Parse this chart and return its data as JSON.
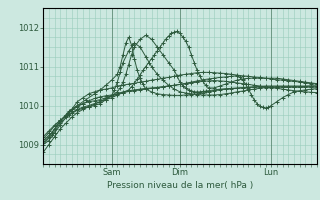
{
  "xlabel": "Pression niveau de la mer( hPa )",
  "bg_color": "#cce8e0",
  "grid_color": "#99ccbb",
  "line_color": "#2d5a3d",
  "ylim": [
    1008.5,
    1012.5
  ],
  "yticks": [
    1009,
    1010,
    1011,
    1012
  ],
  "xlim": [
    0,
    96
  ],
  "day_positions": [
    24,
    48,
    80
  ],
  "day_labels": [
    "Sam",
    "Dim",
    "Lun"
  ],
  "n_points": 97,
  "series": [
    {
      "x": [
        0,
        2,
        4,
        6,
        8,
        10,
        12,
        14,
        16,
        18,
        20,
        22,
        24,
        26,
        28,
        30,
        32,
        34,
        36,
        38,
        40,
        42,
        44,
        46,
        48,
        50,
        52,
        54,
        56,
        58,
        60,
        62,
        64,
        66,
        68,
        70,
        72,
        74,
        76,
        78,
        80,
        82,
        84,
        86,
        88,
        90,
        92,
        94,
        96
      ],
      "y": [
        1009.0,
        1009.1,
        1009.3,
        1009.5,
        1009.7,
        1009.9,
        1010.1,
        1010.2,
        1010.3,
        1010.35,
        1010.4,
        1010.42,
        1010.45,
        1010.5,
        1010.52,
        1010.55,
        1010.57,
        1010.6,
        1010.62,
        1010.65,
        1010.67,
        1010.7,
        1010.72,
        1010.75,
        1010.78,
        1010.8,
        1010.82,
        1010.84,
        1010.85,
        1010.85,
        1010.84,
        1010.83,
        1010.82,
        1010.8,
        1010.78,
        1010.76,
        1010.75,
        1010.73,
        1010.72,
        1010.7,
        1010.68,
        1010.66,
        1010.65,
        1010.63,
        1010.62,
        1010.6,
        1010.58,
        1010.56,
        1010.55
      ]
    },
    {
      "x": [
        0,
        2,
        4,
        6,
        8,
        10,
        12,
        14,
        16,
        18,
        20,
        22,
        24,
        26,
        28,
        30,
        32,
        34,
        36,
        38,
        40,
        42,
        44,
        46,
        48,
        50,
        52,
        54,
        56,
        58,
        60,
        62,
        64,
        66,
        68,
        70,
        72,
        74,
        76,
        78,
        80,
        82,
        84,
        86,
        88,
        90,
        92,
        94,
        96
      ],
      "y": [
        1009.05,
        1009.2,
        1009.4,
        1009.6,
        1009.75,
        1009.9,
        1010.0,
        1010.05,
        1010.1,
        1010.12,
        1010.15,
        1010.2,
        1010.25,
        1010.3,
        1010.35,
        1010.38,
        1010.4,
        1010.42,
        1010.44,
        1010.45,
        1010.46,
        1010.48,
        1010.5,
        1010.52,
        1010.54,
        1010.56,
        1010.58,
        1010.6,
        1010.62,
        1010.63,
        1010.64,
        1010.63,
        1010.62,
        1010.6,
        1010.58,
        1010.56,
        1010.54,
        1010.52,
        1010.5,
        1010.48,
        1010.46,
        1010.44,
        1010.42,
        1010.4,
        1010.38,
        1010.36,
        1010.35,
        1010.34,
        1010.33
      ]
    },
    {
      "x": [
        0,
        3,
        6,
        9,
        12,
        15,
        18,
        20,
        22,
        24,
        26,
        27,
        28,
        29,
        30,
        31,
        32,
        33,
        34,
        35,
        36,
        38,
        40,
        42,
        44,
        46,
        48,
        50,
        52,
        54,
        56,
        58,
        60,
        62,
        64,
        66,
        68,
        70,
        72,
        74,
        76,
        78,
        80,
        82,
        84,
        86,
        88,
        90,
        92,
        94,
        96
      ],
      "y": [
        1009.1,
        1009.3,
        1009.6,
        1009.85,
        1010.0,
        1010.15,
        1010.3,
        1010.4,
        1010.52,
        1010.65,
        1010.8,
        1011.0,
        1011.3,
        1011.6,
        1011.75,
        1011.55,
        1011.2,
        1010.9,
        1010.7,
        1010.55,
        1010.42,
        1010.35,
        1010.3,
        1010.28,
        1010.27,
        1010.26,
        1010.26,
        1010.27,
        1010.28,
        1010.3,
        1010.32,
        1010.35,
        1010.38,
        1010.4,
        1010.42,
        1010.43,
        1010.44,
        1010.45,
        1010.46,
        1010.47,
        1010.47,
        1010.47,
        1010.47,
        1010.47,
        1010.47,
        1010.47,
        1010.47,
        1010.47,
        1010.47,
        1010.47,
        1010.47
      ]
    },
    {
      "x": [
        0,
        3,
        6,
        9,
        12,
        14,
        16,
        18,
        20,
        22,
        24,
        25,
        26,
        27,
        28,
        30,
        32,
        34,
        36,
        38,
        40,
        42,
        44,
        46,
        48,
        50,
        52,
        54,
        56,
        58,
        60,
        62,
        64,
        66,
        68,
        70,
        72,
        74,
        76,
        78,
        80,
        82,
        84,
        86,
        88,
        90,
        92,
        94,
        96
      ],
      "y": [
        1009.0,
        1009.25,
        1009.55,
        1009.75,
        1009.88,
        1009.93,
        1009.97,
        1010.0,
        1010.05,
        1010.15,
        1010.25,
        1010.4,
        1010.6,
        1010.85,
        1011.1,
        1011.4,
        1011.6,
        1011.5,
        1011.25,
        1011.0,
        1010.8,
        1010.65,
        1010.52,
        1010.42,
        1010.35,
        1010.32,
        1010.3,
        1010.28,
        1010.27,
        1010.27,
        1010.27,
        1010.28,
        1010.3,
        1010.32,
        1010.35,
        1010.37,
        1010.4,
        1010.42,
        1010.44,
        1010.46,
        1010.47,
        1010.48,
        1010.48,
        1010.48,
        1010.48,
        1010.48,
        1010.49,
        1010.5,
        1010.5
      ]
    },
    {
      "x": [
        0,
        2,
        4,
        6,
        8,
        10,
        12,
        14,
        16,
        18,
        20,
        22,
        24,
        26,
        27,
        28,
        29,
        30,
        31,
        32,
        34,
        36,
        38,
        40,
        42,
        44,
        46,
        47,
        48,
        49,
        50,
        51,
        52,
        53,
        54,
        55,
        56,
        57,
        58,
        60,
        62,
        64,
        66,
        68,
        70,
        72,
        74,
        76,
        78,
        80,
        82,
        84,
        86,
        88,
        90,
        92,
        94,
        96
      ],
      "y": [
        1008.8,
        1009.0,
        1009.2,
        1009.4,
        1009.55,
        1009.7,
        1009.82,
        1009.9,
        1009.97,
        1010.03,
        1010.1,
        1010.18,
        1010.25,
        1010.35,
        1010.45,
        1010.6,
        1010.8,
        1011.05,
        1011.3,
        1011.5,
        1011.7,
        1011.8,
        1011.7,
        1011.5,
        1011.3,
        1011.1,
        1010.9,
        1010.75,
        1010.6,
        1010.5,
        1010.45,
        1010.4,
        1010.38,
        1010.35,
        1010.35,
        1010.35,
        1010.36,
        1010.37,
        1010.38,
        1010.4,
        1010.42,
        1010.43,
        1010.44,
        1010.45,
        1010.46,
        1010.47,
        1010.48,
        1010.49,
        1010.5,
        1010.5,
        1010.5,
        1010.5,
        1010.5,
        1010.5,
        1010.5,
        1010.5,
        1010.5,
        1010.5
      ]
    },
    {
      "x": [
        0,
        2,
        4,
        6,
        8,
        10,
        12,
        14,
        16,
        18,
        20,
        22,
        24,
        26,
        28,
        30,
        31,
        32,
        33,
        34,
        35,
        36,
        37,
        38,
        39,
        40,
        41,
        42,
        43,
        44,
        45,
        46,
        47,
        48,
        49,
        50,
        51,
        52,
        53,
        54,
        55,
        56,
        57,
        58,
        60,
        62,
        64,
        66,
        68,
        70,
        72,
        74,
        76,
        78,
        80,
        82,
        84,
        86,
        88,
        90,
        92,
        94,
        96
      ],
      "y": [
        1009.2,
        1009.35,
        1009.5,
        1009.62,
        1009.73,
        1009.82,
        1009.9,
        1009.96,
        1010.0,
        1010.05,
        1010.1,
        1010.15,
        1010.2,
        1010.27,
        1010.33,
        1010.4,
        1010.48,
        1010.58,
        1010.68,
        1010.78,
        1010.9,
        1011.0,
        1011.1,
        1011.2,
        1011.3,
        1011.4,
        1011.5,
        1011.6,
        1011.7,
        1011.78,
        1011.85,
        1011.88,
        1011.9,
        1011.85,
        1011.75,
        1011.65,
        1011.5,
        1011.3,
        1011.1,
        1010.9,
        1010.75,
        1010.62,
        1010.52,
        1010.45,
        1010.45,
        1010.5,
        1010.55,
        1010.6,
        1010.65,
        1010.68,
        1010.7,
        1010.7,
        1010.7,
        1010.7,
        1010.7,
        1010.7,
        1010.68,
        1010.66,
        1010.64,
        1010.62,
        1010.6,
        1010.58,
        1010.56
      ]
    },
    {
      "x": [
        0,
        2,
        4,
        6,
        8,
        10,
        12,
        14,
        16,
        18,
        20,
        22,
        24,
        26,
        28,
        30,
        32,
        34,
        36,
        38,
        40,
        42,
        44,
        46,
        48,
        50,
        52,
        54,
        56,
        58,
        60,
        62,
        64,
        66,
        68,
        69,
        70,
        71,
        72,
        73,
        74,
        75,
        76,
        77,
        78,
        79,
        80,
        82,
        84,
        86,
        88,
        90,
        92,
        94,
        96
      ],
      "y": [
        1009.15,
        1009.3,
        1009.48,
        1009.62,
        1009.75,
        1009.87,
        1009.97,
        1010.05,
        1010.12,
        1010.18,
        1010.22,
        1010.25,
        1010.27,
        1010.3,
        1010.33,
        1010.36,
        1010.38,
        1010.4,
        1010.42,
        1010.44,
        1010.46,
        1010.48,
        1010.5,
        1010.52,
        1010.54,
        1010.57,
        1010.6,
        1010.63,
        1010.66,
        1010.68,
        1010.7,
        1010.72,
        1010.73,
        1010.75,
        1010.76,
        1010.72,
        1010.65,
        1010.55,
        1010.42,
        1010.28,
        1010.15,
        1010.05,
        1009.98,
        1009.95,
        1009.93,
        1009.95,
        1010.0,
        1010.1,
        1010.2,
        1010.28,
        1010.35,
        1010.38,
        1010.4,
        1010.42,
        1010.43
      ]
    }
  ]
}
